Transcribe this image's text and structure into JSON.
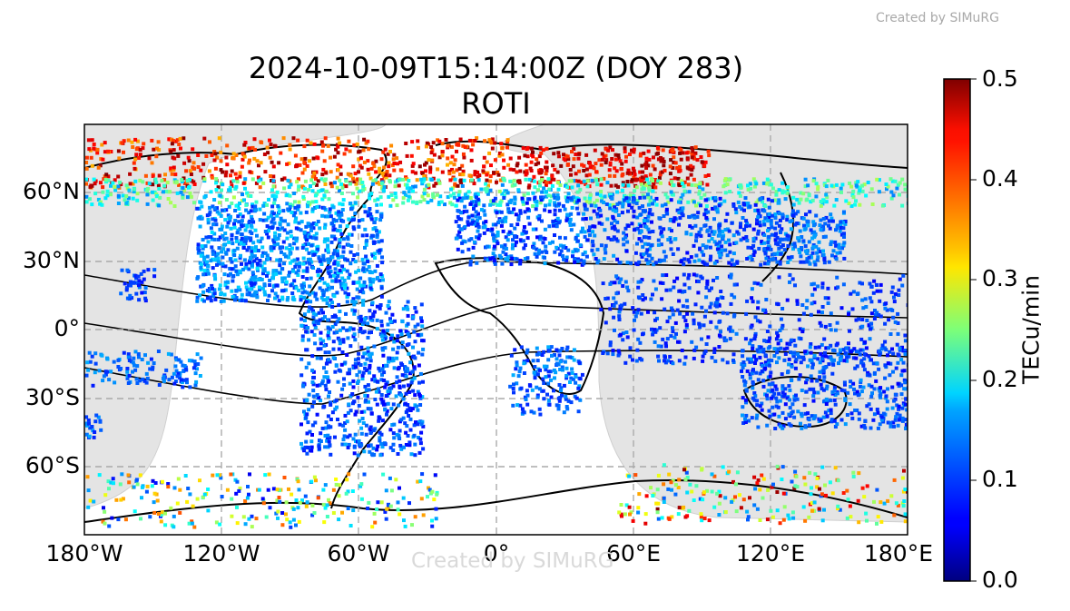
{
  "credit_top": "Created by SIMuRG",
  "watermark": "Created by SIMuRG",
  "map": {
    "title_line1": "2024-10-09T15:14:00Z (DOY 283)",
    "title_line2": "ROTI",
    "projection": "plate-carree",
    "lon_range": [
      -180,
      180
    ],
    "lat_range": [
      -90,
      90
    ],
    "grid": true,
    "lon_ticks": [
      {
        "value": -180,
        "label": "180°W"
      },
      {
        "value": -120,
        "label": "120°W"
      },
      {
        "value": -60,
        "label": "60°W"
      },
      {
        "value": 0,
        "label": "0°"
      },
      {
        "value": 60,
        "label": "60°E"
      },
      {
        "value": 120,
        "label": "120°E"
      },
      {
        "value": 180,
        "label": "180°E"
      }
    ],
    "lat_ticks": [
      {
        "value": 60,
        "label": "60°N"
      },
      {
        "value": 30,
        "label": "30°N"
      },
      {
        "value": 0,
        "label": "0°"
      },
      {
        "value": -30,
        "label": "30°S"
      },
      {
        "value": -60,
        "label": "60°S"
      }
    ],
    "night_shading_color": "#e3e3e3",
    "coastline_color": "#000000"
  },
  "colorbar": {
    "label": "TECu/min",
    "colormap": "jet",
    "range": [
      0,
      0.5
    ],
    "ticks": [
      "0.0",
      "0.1",
      "0.2",
      "0.3",
      "0.4",
      "0.5"
    ]
  }
}
